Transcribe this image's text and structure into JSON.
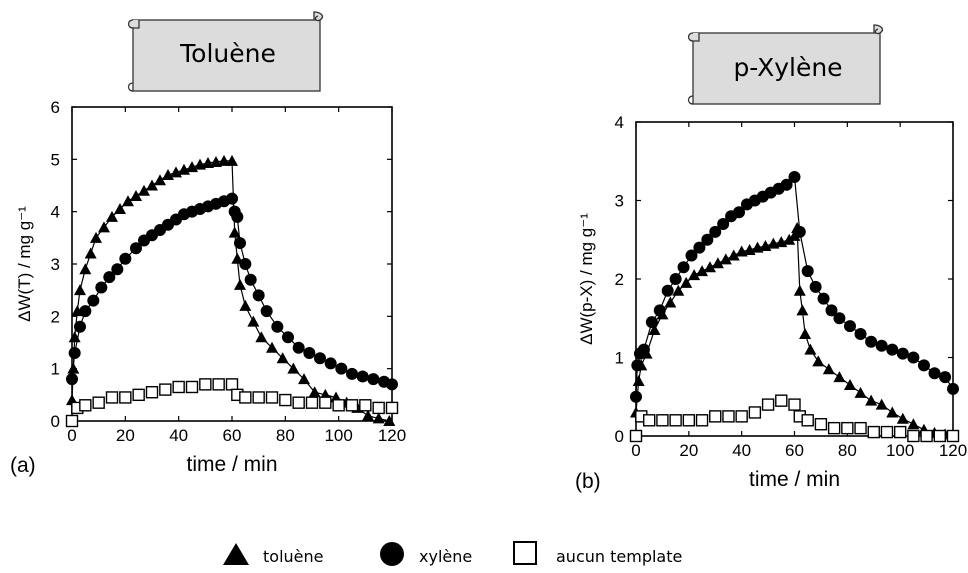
{
  "banners": {
    "left": "Toluène",
    "right": "p-Xylène"
  },
  "legend": {
    "toluene": "toluène",
    "xylene": "xylène",
    "none": "aucun template"
  },
  "chart_data": [
    {
      "type": "scatter",
      "panel": "(a)",
      "xlabel": "time / min",
      "ylabel": "ΔW(T) / mg g⁻¹",
      "xlim": [
        0,
        120
      ],
      "ylim": [
        0,
        6
      ],
      "xticks": [
        "0",
        "20",
        "40",
        "60",
        "80",
        "100",
        "120"
      ],
      "yticks": [
        "0",
        "1",
        "2",
        "3",
        "4",
        "5",
        "6"
      ],
      "series": [
        {
          "name": "toluène",
          "marker": "triangle",
          "points": [
            [
              0,
              0.4
            ],
            [
              0.5,
              1.0
            ],
            [
              1,
              1.6
            ],
            [
              2,
              2.1
            ],
            [
              3,
              2.5
            ],
            [
              5,
              2.9
            ],
            [
              7,
              3.2
            ],
            [
              9,
              3.5
            ],
            [
              12,
              3.7
            ],
            [
              15,
              3.9
            ],
            [
              18,
              4.05
            ],
            [
              21,
              4.2
            ],
            [
              24,
              4.3
            ],
            [
              27,
              4.4
            ],
            [
              30,
              4.5
            ],
            [
              33,
              4.6
            ],
            [
              36,
              4.7
            ],
            [
              39,
              4.75
            ],
            [
              42,
              4.8
            ],
            [
              45,
              4.85
            ],
            [
              48,
              4.9
            ],
            [
              51,
              4.93
            ],
            [
              54,
              4.95
            ],
            [
              57,
              4.97
            ],
            [
              60,
              4.97
            ],
            [
              61,
              3.6
            ],
            [
              62,
              3.1
            ],
            [
              63,
              2.6
            ],
            [
              65,
              2.2
            ],
            [
              68,
              1.9
            ],
            [
              71,
              1.6
            ],
            [
              75,
              1.4
            ],
            [
              79,
              1.2
            ],
            [
              83,
              1.0
            ],
            [
              87,
              0.8
            ],
            [
              91,
              0.55
            ],
            [
              95,
              0.5
            ],
            [
              99,
              0.45
            ],
            [
              103,
              0.35
            ],
            [
              107,
              0.25
            ],
            [
              111,
              0.1
            ],
            [
              115,
              0.05
            ],
            [
              119,
              0.0
            ]
          ]
        },
        {
          "name": "xylène",
          "marker": "circle",
          "points": [
            [
              0,
              0.8
            ],
            [
              1,
              1.3
            ],
            [
              3,
              1.8
            ],
            [
              5,
              2.1
            ],
            [
              8,
              2.3
            ],
            [
              11,
              2.55
            ],
            [
              14,
              2.75
            ],
            [
              17,
              2.9
            ],
            [
              20,
              3.1
            ],
            [
              24,
              3.3
            ],
            [
              27,
              3.45
            ],
            [
              30,
              3.55
            ],
            [
              33,
              3.65
            ],
            [
              36,
              3.75
            ],
            [
              39,
              3.85
            ],
            [
              42,
              3.95
            ],
            [
              45,
              4.0
            ],
            [
              48,
              4.05
            ],
            [
              51,
              4.1
            ],
            [
              54,
              4.15
            ],
            [
              57,
              4.2
            ],
            [
              60,
              4.25
            ],
            [
              61,
              4.0
            ],
            [
              62,
              3.9
            ],
            [
              63,
              3.4
            ],
            [
              65,
              3.0
            ],
            [
              67,
              2.7
            ],
            [
              70,
              2.4
            ],
            [
              73,
              2.1
            ],
            [
              77,
              1.8
            ],
            [
              81,
              1.6
            ],
            [
              85,
              1.4
            ],
            [
              89,
              1.3
            ],
            [
              93,
              1.2
            ],
            [
              97,
              1.1
            ],
            [
              101,
              1.0
            ],
            [
              105,
              0.9
            ],
            [
              109,
              0.85
            ],
            [
              113,
              0.8
            ],
            [
              117,
              0.75
            ],
            [
              120,
              0.7
            ]
          ]
        },
        {
          "name": "aucun template",
          "marker": "square",
          "points": [
            [
              0,
              0.0
            ],
            [
              2,
              0.25
            ],
            [
              5,
              0.3
            ],
            [
              10,
              0.35
            ],
            [
              15,
              0.45
            ],
            [
              20,
              0.45
            ],
            [
              25,
              0.5
            ],
            [
              30,
              0.55
            ],
            [
              35,
              0.6
            ],
            [
              40,
              0.65
            ],
            [
              45,
              0.65
            ],
            [
              50,
              0.7
            ],
            [
              55,
              0.7
            ],
            [
              60,
              0.7
            ],
            [
              62,
              0.5
            ],
            [
              65,
              0.45
            ],
            [
              70,
              0.45
            ],
            [
              75,
              0.45
            ],
            [
              80,
              0.4
            ],
            [
              85,
              0.35
            ],
            [
              90,
              0.35
            ],
            [
              95,
              0.35
            ],
            [
              100,
              0.3
            ],
            [
              105,
              0.3
            ],
            [
              110,
              0.3
            ],
            [
              115,
              0.25
            ],
            [
              120,
              0.25
            ]
          ]
        }
      ]
    },
    {
      "type": "scatter",
      "panel": "(b)",
      "xlabel": "time / min",
      "ylabel": "ΔW(p-X) / mg g⁻¹",
      "xlim": [
        0,
        120
      ],
      "ylim": [
        0,
        4
      ],
      "xticks": [
        "0",
        "20",
        "40",
        "60",
        "80",
        "100",
        "120"
      ],
      "yticks": [
        "0",
        "1",
        "2",
        "3",
        "4"
      ],
      "series": [
        {
          "name": "toluène",
          "marker": "triangle",
          "points": [
            [
              0,
              0.3
            ],
            [
              1,
              0.7
            ],
            [
              2,
              0.9
            ],
            [
              4,
              1.05
            ],
            [
              7,
              1.35
            ],
            [
              10,
              1.55
            ],
            [
              13,
              1.7
            ],
            [
              16,
              1.85
            ],
            [
              19,
              1.95
            ],
            [
              22,
              2.05
            ],
            [
              25,
              2.1
            ],
            [
              28,
              2.15
            ],
            [
              31,
              2.2
            ],
            [
              34,
              2.25
            ],
            [
              37,
              2.3
            ],
            [
              40,
              2.35
            ],
            [
              43,
              2.37
            ],
            [
              46,
              2.4
            ],
            [
              49,
              2.42
            ],
            [
              52,
              2.45
            ],
            [
              55,
              2.47
            ],
            [
              58,
              2.5
            ],
            [
              60,
              2.55
            ],
            [
              61,
              2.65
            ],
            [
              62,
              1.85
            ],
            [
              63,
              1.6
            ],
            [
              64,
              1.3
            ],
            [
              66,
              1.1
            ],
            [
              69,
              0.95
            ],
            [
              73,
              0.85
            ],
            [
              77,
              0.75
            ],
            [
              81,
              0.65
            ],
            [
              85,
              0.55
            ],
            [
              89,
              0.45
            ],
            [
              93,
              0.4
            ],
            [
              97,
              0.3
            ],
            [
              101,
              0.22
            ],
            [
              105,
              0.15
            ],
            [
              109,
              0.08
            ],
            [
              113,
              0.04
            ],
            [
              117,
              0.02
            ],
            [
              120,
              0.0
            ]
          ]
        },
        {
          "name": "xylène",
          "marker": "circle",
          "points": [
            [
              0,
              0.5
            ],
            [
              0.5,
              0.9
            ],
            [
              1.5,
              1.05
            ],
            [
              3,
              1.1
            ],
            [
              6,
              1.45
            ],
            [
              9,
              1.6
            ],
            [
              12,
              1.85
            ],
            [
              15,
              2.0
            ],
            [
              18,
              2.15
            ],
            [
              21,
              2.3
            ],
            [
              24,
              2.4
            ],
            [
              27,
              2.5
            ],
            [
              30,
              2.6
            ],
            [
              33,
              2.7
            ],
            [
              36,
              2.8
            ],
            [
              39,
              2.85
            ],
            [
              42,
              2.95
            ],
            [
              45,
              3.0
            ],
            [
              48,
              3.05
            ],
            [
              51,
              3.1
            ],
            [
              54,
              3.15
            ],
            [
              57,
              3.2
            ],
            [
              60,
              3.3
            ],
            [
              62,
              2.6
            ],
            [
              65,
              2.1
            ],
            [
              68,
              1.9
            ],
            [
              71,
              1.75
            ],
            [
              74,
              1.6
            ],
            [
              77,
              1.5
            ],
            [
              81,
              1.4
            ],
            [
              85,
              1.3
            ],
            [
              89,
              1.2
            ],
            [
              93,
              1.15
            ],
            [
              97,
              1.1
            ],
            [
              101,
              1.05
            ],
            [
              105,
              1.0
            ],
            [
              109,
              0.9
            ],
            [
              113,
              0.8
            ],
            [
              117,
              0.75
            ],
            [
              120,
              0.6
            ]
          ]
        },
        {
          "name": "aucun template",
          "marker": "square",
          "points": [
            [
              0,
              0.0
            ],
            [
              2,
              0.25
            ],
            [
              5,
              0.2
            ],
            [
              10,
              0.2
            ],
            [
              15,
              0.2
            ],
            [
              20,
              0.2
            ],
            [
              25,
              0.2
            ],
            [
              30,
              0.25
            ],
            [
              35,
              0.25
            ],
            [
              40,
              0.25
            ],
            [
              45,
              0.3
            ],
            [
              50,
              0.4
            ],
            [
              55,
              0.45
            ],
            [
              60,
              0.4
            ],
            [
              62,
              0.25
            ],
            [
              65,
              0.2
            ],
            [
              70,
              0.15
            ],
            [
              75,
              0.1
            ],
            [
              80,
              0.1
            ],
            [
              85,
              0.1
            ],
            [
              90,
              0.05
            ],
            [
              95,
              0.05
            ],
            [
              100,
              0.05
            ],
            [
              105,
              0.0
            ],
            [
              110,
              0.0
            ],
            [
              115,
              0.0
            ],
            [
              120,
              0.0
            ]
          ]
        }
      ]
    }
  ]
}
